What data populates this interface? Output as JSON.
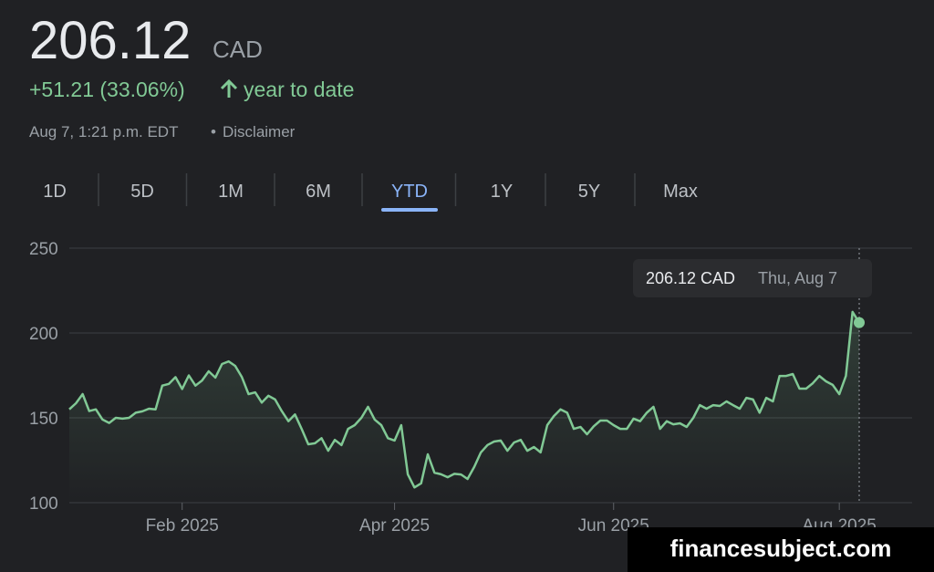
{
  "header": {
    "price": "206.12",
    "currency": "CAD",
    "change": "+51.21 (33.06%)",
    "period": "year to date",
    "timestamp": "Aug 7, 1:21 p.m. EDT",
    "disclaimer": "Disclaimer"
  },
  "tabs": {
    "items": [
      "1D",
      "5D",
      "1M",
      "6M",
      "YTD",
      "1Y",
      "5Y",
      "Max"
    ],
    "active": 4
  },
  "chart_data": {
    "type": "line",
    "color": "#81c995",
    "values": [
      155,
      158.6,
      164,
      154,
      155,
      149,
      147,
      150,
      149.5,
      150,
      153,
      153.8,
      155.4,
      155,
      169,
      170,
      174,
      167,
      175,
      169,
      172,
      177.4,
      173.7,
      181.7,
      183.3,
      180.6,
      174,
      164,
      165,
      159,
      163,
      160.8,
      154,
      148,
      152,
      143.5,
      134.4,
      135,
      138,
      130.6,
      137,
      133.9,
      143.5,
      145.7,
      150,
      156.5,
      149,
      145.7,
      138,
      136.6,
      145.7,
      116.7,
      109,
      111.4,
      128.5,
      117.7,
      116.7,
      115,
      117,
      116.6,
      114,
      121,
      129.6,
      134,
      136,
      136.6,
      130.6,
      135.5,
      137,
      130.6,
      132.8,
      129.6,
      145.7,
      151,
      155,
      153,
      143.5,
      144.6,
      140.3,
      145,
      148.4,
      148.4,
      145.7,
      143.5,
      143.5,
      149.5,
      148,
      153,
      156.5,
      143.5,
      148,
      146.2,
      146.8,
      144.6,
      150,
      157.5,
      155.4,
      157.5,
      157,
      159.7,
      157.5,
      155.4,
      161.8,
      160.8,
      153,
      161.8,
      159.7,
      174.7,
      174.7,
      175.8,
      167.2,
      167.2,
      170.4,
      174.7,
      171.5,
      169.4,
      164,
      174.7,
      212.4,
      206.12
    ],
    "xlim": [
      0,
      119
    ],
    "xticks": [
      {
        "value": 17,
        "label": "Feb 2025"
      },
      {
        "value": 49,
        "label": "Apr 2025"
      },
      {
        "value": 82,
        "label": "Jun 2025"
      },
      {
        "value": 116,
        "label": "Aug 2025"
      }
    ],
    "ylim": [
      100,
      250
    ],
    "yticks": [
      100,
      150,
      200,
      250
    ],
    "grid": true,
    "tooltip_value": "206.12 CAD",
    "tooltip_date": "Thu, Aug 7"
  },
  "watermark": "financesubject.com"
}
